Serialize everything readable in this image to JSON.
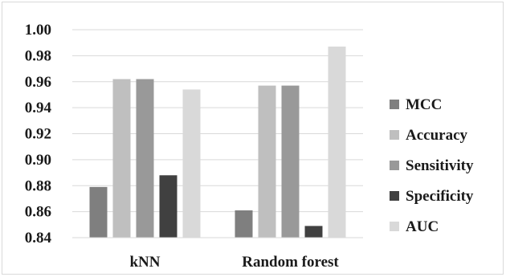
{
  "chart_data": {
    "type": "bar",
    "title": "",
    "xlabel": "",
    "ylabel": "",
    "categories": [
      "kNN",
      "Random forest"
    ],
    "series": [
      {
        "name": "MCC",
        "color": "#7f7f7f",
        "values": [
          0.879,
          0.861
        ]
      },
      {
        "name": "Accuracy",
        "color": "#bfbfbf",
        "values": [
          0.962,
          0.957
        ]
      },
      {
        "name": "Sensitivity",
        "color": "#999999",
        "values": [
          0.962,
          0.957
        ]
      },
      {
        "name": "Specificity",
        "color": "#404040",
        "values": [
          0.888,
          0.849
        ]
      },
      {
        "name": "AUC",
        "color": "#d9d9d9",
        "values": [
          0.954,
          0.987
        ]
      }
    ],
    "ylim": [
      0.84,
      1.0
    ],
    "yticks": [
      "1.00",
      "0.98",
      "0.96",
      "0.94",
      "0.92",
      "0.90",
      "0.88",
      "0.86",
      "0.84"
    ],
    "grid": true,
    "legend_position": "right"
  }
}
